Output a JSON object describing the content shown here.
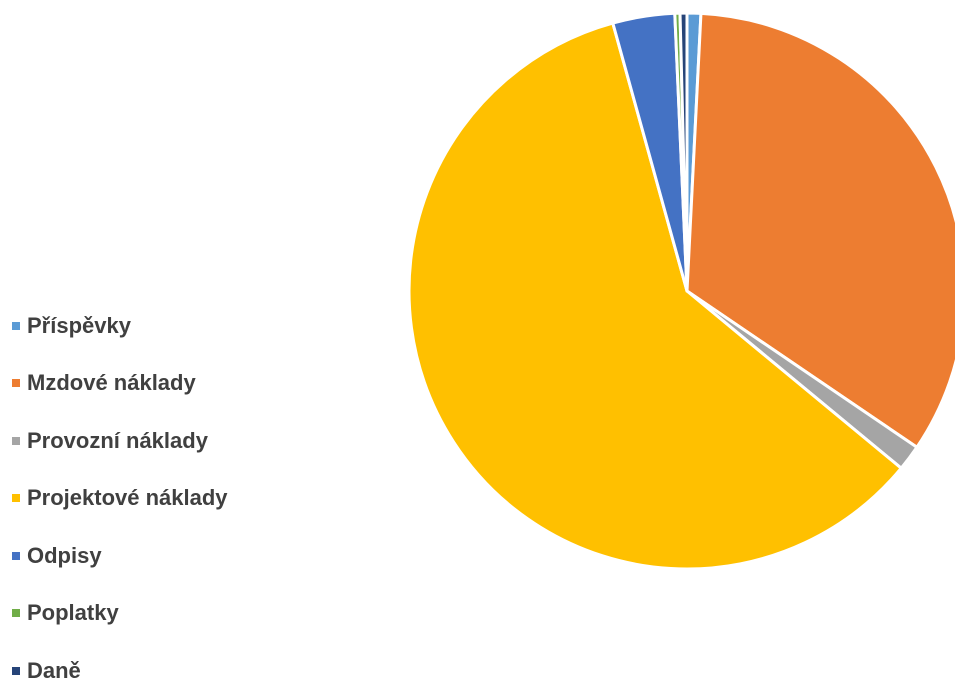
{
  "chart_data": {
    "type": "pie",
    "title": "",
    "start_angle_deg": 0,
    "direction": "clockwise",
    "slices": [
      {
        "label": "Příspěvky",
        "value": 0.8,
        "color": "#5B9BD5"
      },
      {
        "label": "Mzdové náklady",
        "value": 33.7,
        "color": "#ED7D31"
      },
      {
        "label": "Provozní náklady",
        "value": 1.5,
        "color": "#A5A5A5"
      },
      {
        "label": "Projektové náklady",
        "value": 59.7,
        "color": "#FFC000"
      },
      {
        "label": "Odpisy",
        "value": 3.6,
        "color": "#4472C4"
      },
      {
        "label": "Poplatky",
        "value": 0.3,
        "color": "#70AD47"
      },
      {
        "label": "Daně",
        "value": 0.4,
        "color": "#264478"
      }
    ],
    "legend_position": "left"
  }
}
